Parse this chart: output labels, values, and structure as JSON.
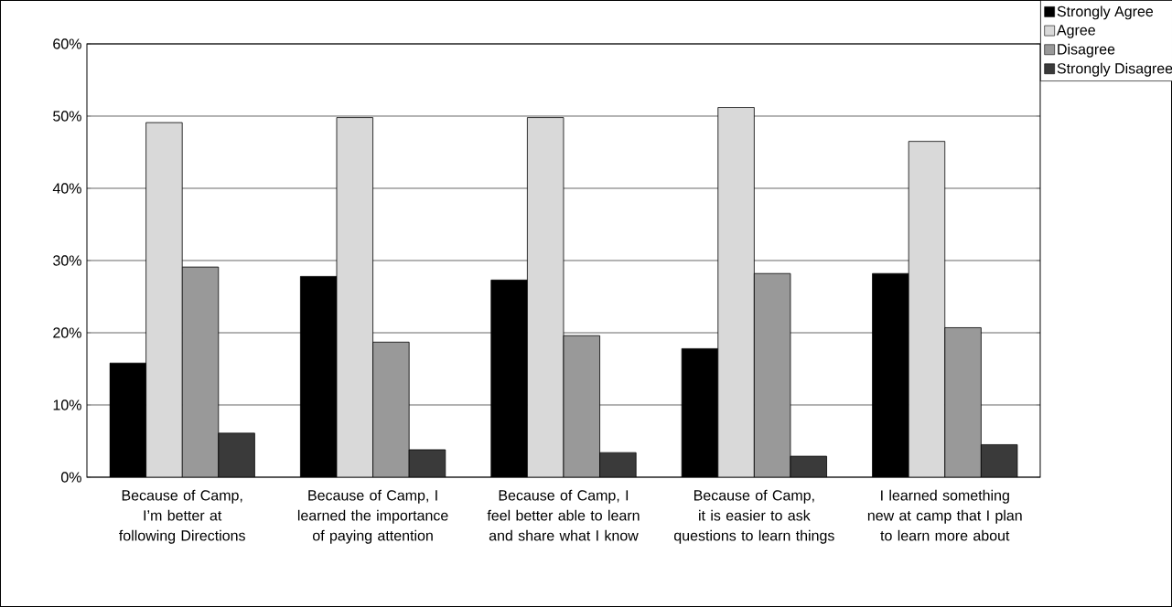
{
  "chart_data": {
    "type": "bar",
    "categories": [
      "Because of Camp, I’m better at following Directions",
      "Because of Camp, I learned the importance of paying attention",
      "Because of Camp, I feel better able to learn and share what I know",
      "Because of Camp, it is easier to ask questions to learn things",
      "I learned something new at camp that I plan to learn more about"
    ],
    "series": [
      {
        "name": "Strongly Agree",
        "color": "#000000",
        "values": [
          15.8,
          27.8,
          27.3,
          17.8,
          28.2
        ]
      },
      {
        "name": "Agree",
        "color": "#d9d9d9",
        "values": [
          49.1,
          49.8,
          49.8,
          51.2,
          46.5
        ]
      },
      {
        "name": "Disagree",
        "color": "#999999",
        "values": [
          29.1,
          18.7,
          19.6,
          28.2,
          20.7
        ]
      },
      {
        "name": "Strongly Disagree",
        "color": "#3a3a3a",
        "values": [
          6.1,
          3.8,
          3.4,
          2.9,
          4.5
        ]
      }
    ],
    "ylim": [
      0,
      60
    ],
    "yticks": [
      {
        "value": 0,
        "label": "0%"
      },
      {
        "value": 10,
        "label": "10%"
      },
      {
        "value": 20,
        "label": "20%"
      },
      {
        "value": 30,
        "label": "30%"
      },
      {
        "value": 40,
        "label": "40%"
      },
      {
        "value": 50,
        "label": "50%"
      },
      {
        "value": 60,
        "label": "60%"
      }
    ],
    "grid": "y",
    "legend": "top right"
  }
}
